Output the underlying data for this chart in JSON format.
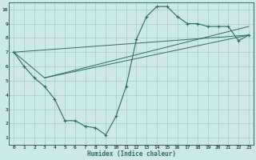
{
  "xlabel": "Humidex (Indice chaleur)",
  "ylabel": "",
  "bg_color": "#cce8e8",
  "grid_color": "#aacece",
  "line_color": "#2a6e60",
  "xlim": [
    -0.5,
    23.5
  ],
  "ylim": [
    0.5,
    10.5
  ],
  "xticks": [
    0,
    1,
    2,
    3,
    4,
    5,
    6,
    7,
    8,
    9,
    10,
    11,
    12,
    13,
    14,
    15,
    16,
    17,
    18,
    19,
    20,
    21,
    22,
    23
  ],
  "yticks": [
    1,
    2,
    3,
    4,
    5,
    6,
    7,
    8,
    9,
    10
  ],
  "series_main": {
    "x": [
      0,
      1,
      2,
      3,
      4,
      5,
      6,
      7,
      8,
      9,
      10,
      11,
      12,
      13,
      14,
      15,
      16,
      17,
      18,
      19,
      20,
      21,
      22,
      23
    ],
    "y": [
      7,
      6,
      5.2,
      4.6,
      3.7,
      2.2,
      2.2,
      1.8,
      1.7,
      1.2,
      2.5,
      4.6,
      7.9,
      9.5,
      10.2,
      10.2,
      9.5,
      9.0,
      9.0,
      8.8,
      8.8,
      8.8,
      7.8,
      8.2
    ]
  },
  "series_lines": [
    {
      "x": [
        0,
        3,
        23
      ],
      "y": [
        7,
        5.2,
        8.8
      ]
    },
    {
      "x": [
        0,
        23
      ],
      "y": [
        7,
        8.2
      ]
    },
    {
      "x": [
        3,
        23
      ],
      "y": [
        5.2,
        8.2
      ]
    }
  ],
  "xlabel_fontsize": 5.5,
  "tick_fontsize": 4.5
}
